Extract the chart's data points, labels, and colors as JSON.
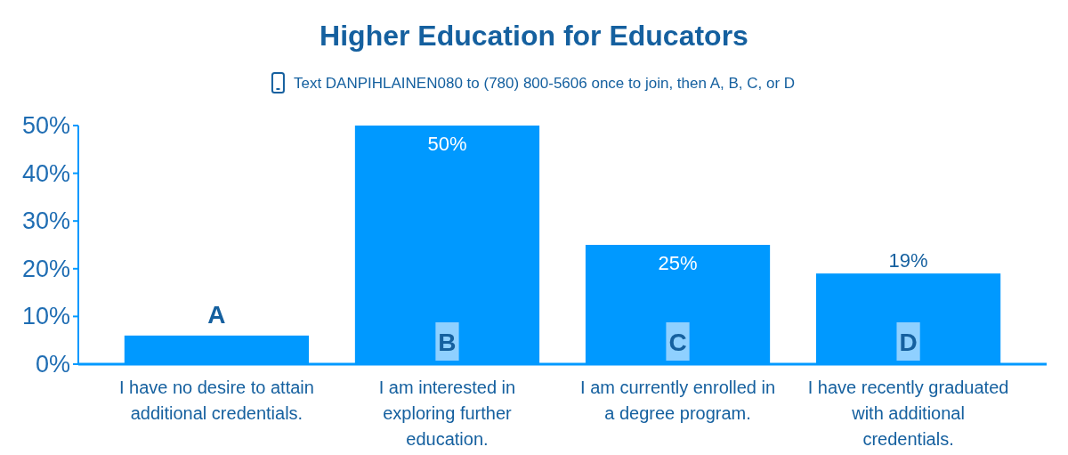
{
  "chart_data": {
    "type": "bar",
    "title": "Higher Education for Educators",
    "subtitle": "Text DANPIHLAINEN080 to (780) 800-5606 once to join, then A, B, C, or D",
    "categories": [
      "I have no desire to attain additional credentials.",
      "I am interested in exploring further education.",
      "I am currently enrolled in a degree program.",
      "I have recently graduated with additional credentials."
    ],
    "values": [
      6,
      50,
      25,
      19
    ],
    "color": "#0099ff",
    "value_labels": [
      null,
      "50%",
      "25%",
      "19%"
    ],
    "annotations": [
      "A",
      "B",
      "C",
      "D"
    ],
    "ylim": [
      0,
      50
    ],
    "yticks": [
      {
        "value": 0,
        "label": "0%"
      },
      {
        "value": 10,
        "label": "10%"
      },
      {
        "value": 20,
        "label": "20%"
      },
      {
        "value": 30,
        "label": "30%"
      },
      {
        "value": 40,
        "label": "40%"
      },
      {
        "value": 50,
        "label": "50%"
      }
    ]
  }
}
